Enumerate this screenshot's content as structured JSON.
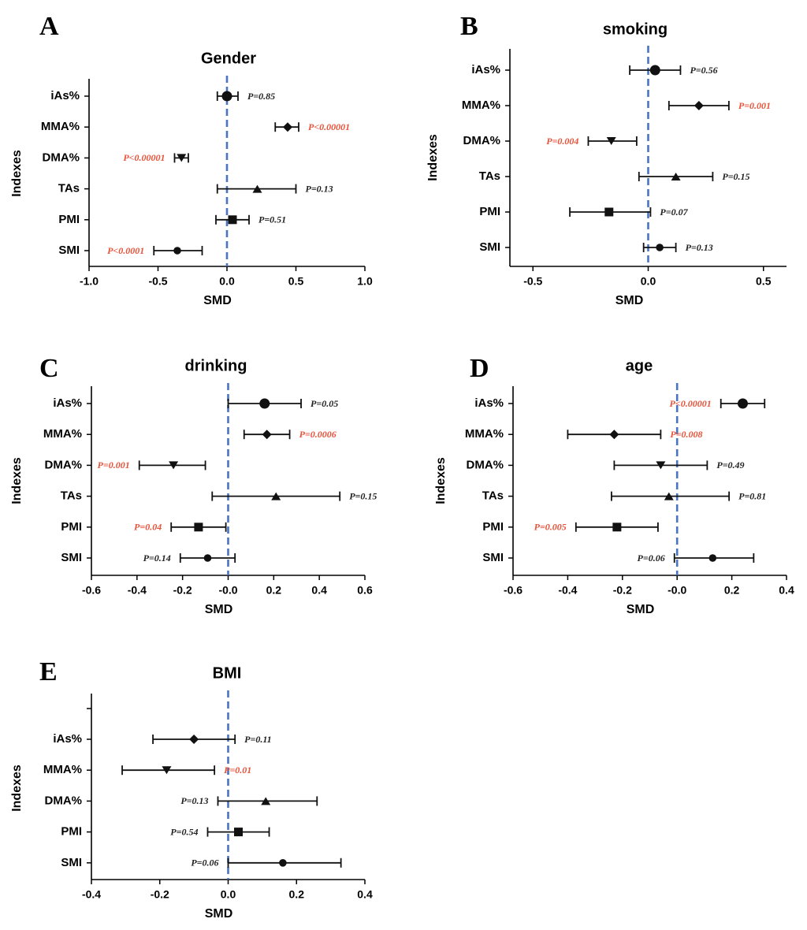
{
  "figure": {
    "background": "#ffffff"
  },
  "colors": {
    "significant": "#e8533b",
    "normal": "#222222",
    "reference_line": "#4a73c2",
    "axis": "#000000"
  },
  "chart_data": [
    {
      "letter": "A",
      "type": "forest",
      "title": "Gender",
      "xlabel": "SMD",
      "ylabel": "Indexes",
      "xlim": [
        -1.0,
        1.0
      ],
      "xticks": [
        -1.0,
        -0.5,
        0.0,
        0.5,
        1.0
      ],
      "xtick_labels": [
        "-1.0",
        "-0.5",
        "0.0",
        "0.5",
        "1.0"
      ],
      "reference": 0,
      "rows": [
        {
          "label": "iAs%",
          "est": 0.0,
          "lo": -0.07,
          "hi": 0.08,
          "marker": "circle-large",
          "p": "P=0.85",
          "p_side": "right",
          "sig": false
        },
        {
          "label": "MMA%",
          "est": 0.44,
          "lo": 0.35,
          "hi": 0.52,
          "marker": "diamond",
          "p": "P<0.00001",
          "p_side": "right",
          "sig": true
        },
        {
          "label": "DMA%",
          "est": -0.33,
          "lo": -0.38,
          "hi": -0.28,
          "marker": "triangle-down",
          "p": "P<0.00001",
          "p_side": "left",
          "sig": true
        },
        {
          "label": "TAs",
          "est": 0.22,
          "lo": -0.07,
          "hi": 0.5,
          "marker": "triangle-up",
          "p": "P=0.13",
          "p_side": "right",
          "sig": false
        },
        {
          "label": "PMI",
          "est": 0.04,
          "lo": -0.08,
          "hi": 0.16,
          "marker": "square",
          "p": "P=0.51",
          "p_side": "right",
          "sig": false
        },
        {
          "label": "SMI",
          "est": -0.36,
          "lo": -0.53,
          "hi": -0.18,
          "marker": "circle",
          "p": "P<0.0001",
          "p_side": "left",
          "sig": true
        }
      ]
    },
    {
      "letter": "B",
      "type": "forest",
      "title": "smoking",
      "xlabel": "SMD",
      "ylabel": "Indexes",
      "xlim": [
        -0.6,
        0.6
      ],
      "xticks": [
        -0.5,
        0.0,
        0.5
      ],
      "xtick_labels": [
        "-0.5",
        "0.0",
        "0.5"
      ],
      "reference": 0,
      "rows": [
        {
          "label": "iAs%",
          "est": 0.03,
          "lo": -0.08,
          "hi": 0.14,
          "marker": "circle-large",
          "p": "P=0.56",
          "p_side": "right",
          "sig": false
        },
        {
          "label": "MMA%",
          "est": 0.22,
          "lo": 0.09,
          "hi": 0.35,
          "marker": "diamond",
          "p": "P=0.001",
          "p_side": "right",
          "sig": true
        },
        {
          "label": "DMA%",
          "est": -0.16,
          "lo": -0.26,
          "hi": -0.05,
          "marker": "triangle-down",
          "p": "P=0.004",
          "p_side": "left",
          "sig": true
        },
        {
          "label": "TAs",
          "est": 0.12,
          "lo": -0.04,
          "hi": 0.28,
          "marker": "triangle-up",
          "p": "P=0.15",
          "p_side": "right",
          "sig": false
        },
        {
          "label": "PMI",
          "est": -0.17,
          "lo": -0.34,
          "hi": 0.01,
          "marker": "square",
          "p": "P=0.07",
          "p_side": "right",
          "sig": false
        },
        {
          "label": "SMI",
          "est": 0.05,
          "lo": -0.02,
          "hi": 0.12,
          "marker": "circle",
          "p": "P=0.13",
          "p_side": "right",
          "sig": false
        }
      ]
    },
    {
      "letter": "C",
      "type": "forest",
      "title": "drinking",
      "xlabel": "SMD",
      "ylabel": "Indexes",
      "xlim": [
        -0.6,
        0.6
      ],
      "xticks": [
        -0.6,
        -0.4,
        -0.2,
        0.0,
        0.2,
        0.4,
        0.6
      ],
      "xtick_labels": [
        "-0.6",
        "-0.4",
        "-0.2",
        "-0.0",
        "0.2",
        "0.4",
        "0.6"
      ],
      "reference": 0,
      "rows": [
        {
          "label": "iAs%",
          "est": 0.16,
          "lo": 0.0,
          "hi": 0.32,
          "marker": "circle-large",
          "p": "P=0.05",
          "p_side": "right",
          "sig": false
        },
        {
          "label": "MMA%",
          "est": 0.17,
          "lo": 0.07,
          "hi": 0.27,
          "marker": "diamond",
          "p": "P=0.0006",
          "p_side": "right",
          "sig": true
        },
        {
          "label": "DMA%",
          "est": -0.24,
          "lo": -0.39,
          "hi": -0.1,
          "marker": "triangle-down",
          "p": "P=0.001",
          "p_side": "left",
          "sig": true
        },
        {
          "label": "TAs",
          "est": 0.21,
          "lo": -0.07,
          "hi": 0.49,
          "marker": "triangle-up",
          "p": "P=0.15",
          "p_side": "right",
          "sig": false
        },
        {
          "label": "PMI",
          "est": -0.13,
          "lo": -0.25,
          "hi": -0.01,
          "marker": "square",
          "p": "P=0.04",
          "p_side": "left",
          "sig": true
        },
        {
          "label": "SMI",
          "est": -0.09,
          "lo": -0.21,
          "hi": 0.03,
          "marker": "circle",
          "p": "P=0.14",
          "p_side": "left",
          "sig": false
        }
      ]
    },
    {
      "letter": "D",
      "type": "forest",
      "title": "age",
      "xlabel": "SMD",
      "ylabel": "Indexes",
      "xlim": [
        -0.6,
        0.4
      ],
      "xticks": [
        -0.6,
        -0.4,
        -0.2,
        0.0,
        0.2,
        0.4
      ],
      "xtick_labels": [
        "-0.6",
        "-0.4",
        "-0.2",
        "-0.0",
        "0.2",
        "0.4"
      ],
      "reference": 0,
      "rows": [
        {
          "label": "iAs%",
          "est": 0.24,
          "lo": 0.16,
          "hi": 0.32,
          "marker": "circle-large",
          "p": "P<0.00001",
          "p_side": "left",
          "sig": true
        },
        {
          "label": "MMA%",
          "est": -0.23,
          "lo": -0.4,
          "hi": -0.06,
          "marker": "diamond",
          "p": "P=0.008",
          "p_side": "right",
          "sig": true
        },
        {
          "label": "DMA%",
          "est": -0.06,
          "lo": -0.23,
          "hi": 0.11,
          "marker": "triangle-down",
          "p": "P=0.49",
          "p_side": "right",
          "sig": false
        },
        {
          "label": "TAs",
          "est": -0.03,
          "lo": -0.24,
          "hi": 0.19,
          "marker": "triangle-up",
          "p": "P=0.81",
          "p_side": "right",
          "sig": false
        },
        {
          "label": "PMI",
          "est": -0.22,
          "lo": -0.37,
          "hi": -0.07,
          "marker": "square",
          "p": "P=0.005",
          "p_side": "left",
          "sig": true
        },
        {
          "label": "SMI",
          "est": 0.13,
          "lo": -0.01,
          "hi": 0.28,
          "marker": "circle",
          "p": "P=0.06",
          "p_side": "left",
          "sig": false
        }
      ]
    },
    {
      "letter": "E",
      "type": "forest",
      "title": "BMI",
      "xlabel": "SMD",
      "ylabel": "Indexes",
      "xlim": [
        -0.4,
        0.4
      ],
      "xticks": [
        -0.4,
        -0.2,
        0.0,
        0.2,
        0.4
      ],
      "xtick_labels": [
        "-0.4",
        "-0.2",
        "0.0",
        "0.2",
        "0.4"
      ],
      "reference": 0,
      "extra_top_tick": true,
      "rows": [
        {
          "label": "iAs%",
          "est": -0.1,
          "lo": -0.22,
          "hi": 0.02,
          "marker": "diamond",
          "p": "P=0.11",
          "p_side": "right",
          "sig": false
        },
        {
          "label": "MMA%",
          "est": -0.18,
          "lo": -0.31,
          "hi": -0.04,
          "marker": "triangle-down",
          "p": "P=0.01",
          "p_side": "right",
          "sig": true
        },
        {
          "label": "DMA%",
          "est": 0.11,
          "lo": -0.03,
          "hi": 0.26,
          "marker": "triangle-up",
          "p": "P=0.13",
          "p_side": "left",
          "sig": false
        },
        {
          "label": "PMI",
          "est": 0.03,
          "lo": -0.06,
          "hi": 0.12,
          "marker": "square",
          "p": "P=0.54",
          "p_side": "left",
          "sig": false
        },
        {
          "label": "SMI",
          "est": 0.16,
          "lo": 0.0,
          "hi": 0.33,
          "marker": "circle",
          "p": "P=0.06",
          "p_side": "left",
          "sig": false
        }
      ]
    }
  ]
}
